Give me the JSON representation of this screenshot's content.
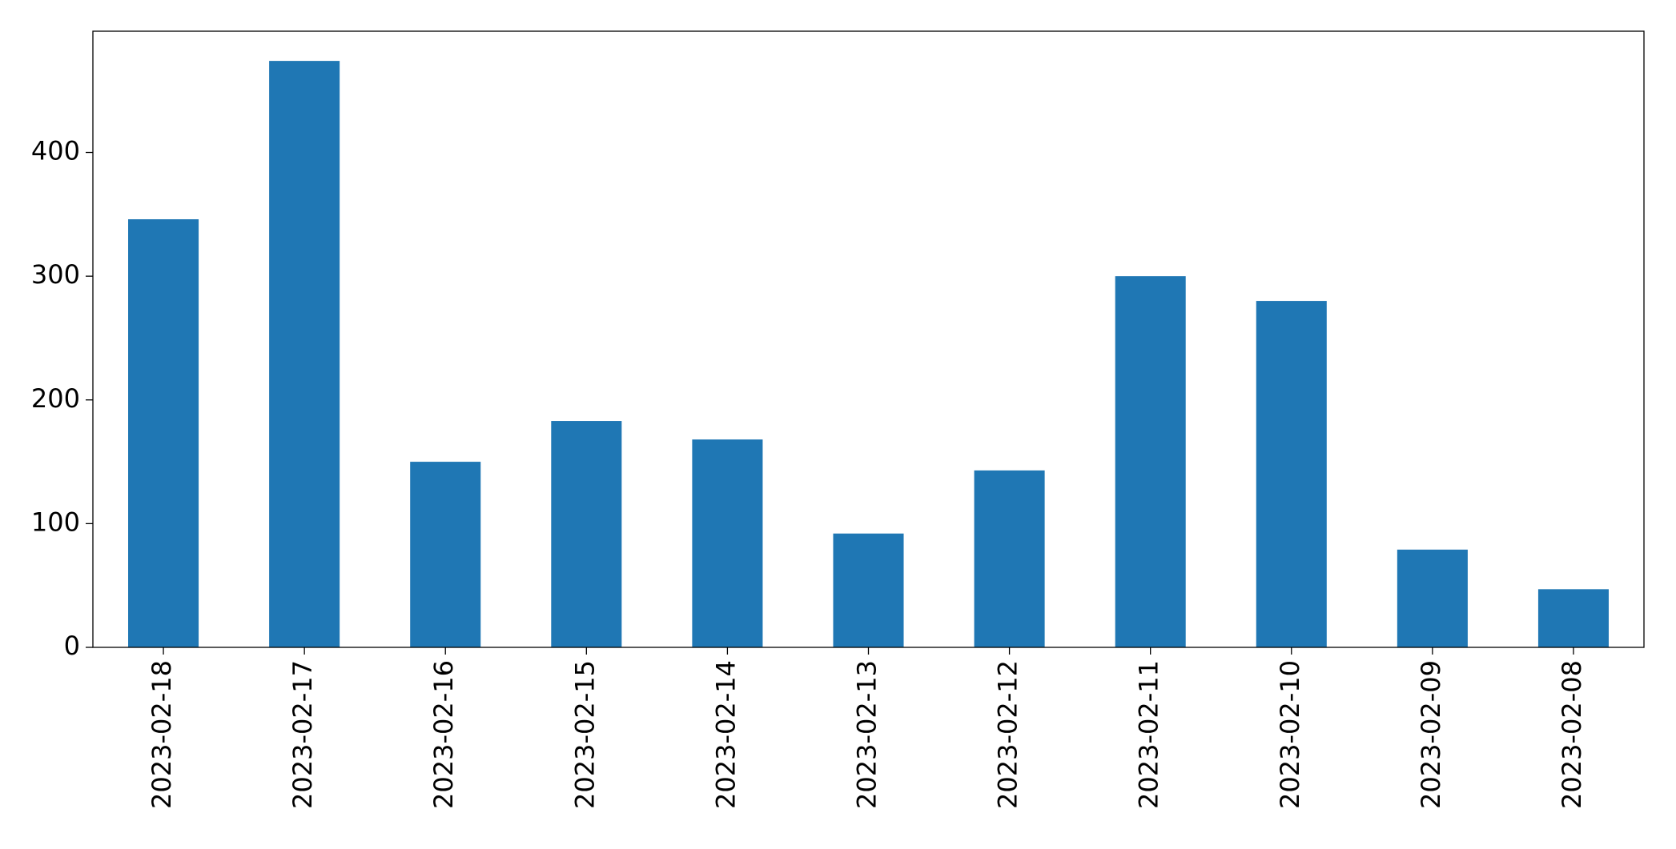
{
  "chart_data": {
    "type": "bar",
    "categories": [
      "2023-02-18",
      "2023-02-17",
      "2023-02-16",
      "2023-02-15",
      "2023-02-14",
      "2023-02-13",
      "2023-02-12",
      "2023-02-11",
      "2023-02-10",
      "2023-02-09",
      "2023-02-08"
    ],
    "values": [
      346,
      474,
      150,
      183,
      168,
      92,
      143,
      300,
      280,
      79,
      47
    ],
    "color": "#1f77b4",
    "ylim": [
      0,
      498
    ],
    "yticks": [
      0,
      100,
      200,
      300,
      400
    ],
    "grid": false
  }
}
